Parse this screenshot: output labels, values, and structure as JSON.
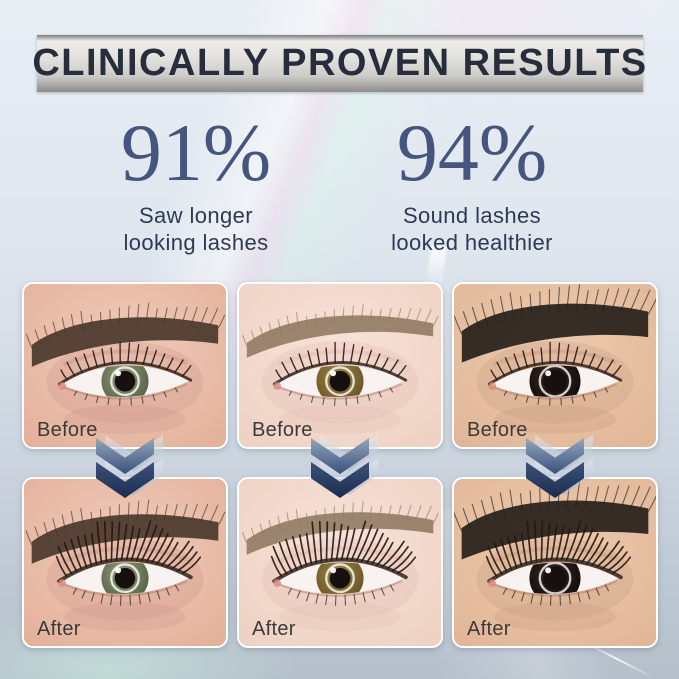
{
  "header": {
    "title": "CLINICALLY PROVEN RESULTS"
  },
  "stats": [
    {
      "value": "91%",
      "caption": [
        "Saw longer",
        "looking lashes"
      ]
    },
    {
      "value": "94%",
      "caption": [
        "Sound lashes",
        "looked healthier"
      ]
    }
  ],
  "labels": {
    "before": "Before",
    "after": "After"
  },
  "colors": {
    "background_top": "#e9eef5",
    "background_bottom": "#b5bfca",
    "banner_text": "#272d3a",
    "banner_silver_light": "#efeeeb",
    "banner_silver_dark": "#8d8c8a",
    "stat_number": "#45557d",
    "stat_caption": "#2e3a53",
    "photo_label": "#3a3a3a",
    "arrow_light": "#92a6bc",
    "arrow_mid": "#3c517a",
    "arrow_dark": "#1b2c50",
    "photo_border": "#ffffff"
  },
  "subjects": [
    {
      "name": "green-eye-model",
      "skin": "#e2ae97",
      "skin_hi": "#f0cdbb",
      "lid": "#cd9488",
      "brow": "#4a382c",
      "brow_h": 1.8,
      "brow_dy": -2,
      "iris": "#8a9672",
      "iris_dark": "#57644a",
      "iris_r": 24,
      "pupil_r": 10.5
    },
    {
      "name": "hazel-eye-model",
      "skin": "#edd0c1",
      "skin_hi": "#f7e3d9",
      "lid": "#e2b9b0",
      "brow": "#937d66",
      "brow_h": 0.9,
      "brow_dy": -4,
      "iris": "#97803f",
      "iris_dark": "#6a5529",
      "iris_r": 24,
      "pupil_r": 10.5
    },
    {
      "name": "brown-eye-model",
      "skin": "#e0b495",
      "skin_hi": "#edcbae",
      "lid": "#c79a7f",
      "brow": "#26201b",
      "brow_h": 3.0,
      "brow_dy": -16,
      "iris": "#32231d",
      "iris_dark": "#140e0c",
      "iris_r": 26,
      "pupil_r": 12
    }
  ]
}
